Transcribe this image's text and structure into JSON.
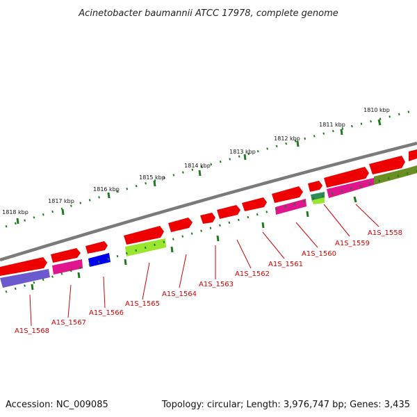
{
  "title": "Acinetobacter baumannii ATCC 17978, complete genome",
  "footer": {
    "accession": "Accession: NC_009085",
    "summary": "Topology: circular; Length: 3,976,747 bp; Genes: 3,435"
  },
  "ruler_labels": [
    "1810 kbp",
    "1811 kbp",
    "1812 kbp",
    "1813 kbp",
    "1814 kbp",
    "1815 kbp",
    "1816 kbp",
    "1817 kbp",
    "1818 kbp"
  ],
  "gene_labels": [
    "A1S_1558",
    "A1S_1559",
    "A1S_1560",
    "A1S_1561",
    "A1S_1562",
    "A1S_1563",
    "A1S_1564",
    "A1S_1565",
    "A1S_1566",
    "A1S_1567",
    "A1S_1568"
  ],
  "colors": {
    "cds": "#ee0000",
    "feature_magenta": "#e0148c",
    "feature_purple": "#6a5acd",
    "feature_blue": "#0000ee",
    "feature_lime": "#9ae62e",
    "feature_olive": "#6b8e23",
    "backbone": "#808080",
    "ticks": "#1e7a1e",
    "labels": "#d40000"
  }
}
